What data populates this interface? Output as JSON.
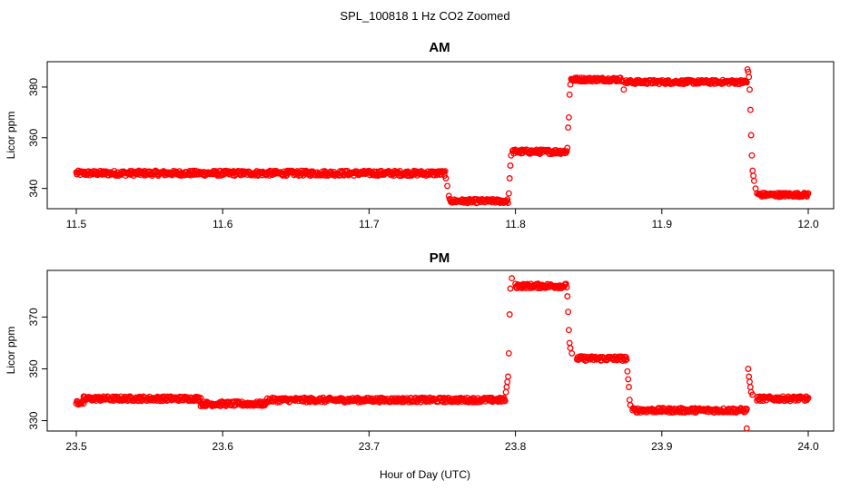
{
  "chart_data": {
    "title": "SPL_100818  1 Hz CO2 Zoomed",
    "xlabel": "Hour of Day (UTC)",
    "type": "scatter",
    "marker_color": "#ff0000",
    "panels": [
      {
        "title": "AM",
        "ylabel": "Licor ppm",
        "xlim": [
          11.5,
          12.0
        ],
        "ylim": [
          332,
          390
        ],
        "xticks": [
          11.5,
          11.6,
          11.7,
          11.8,
          11.9,
          12.0
        ],
        "xtick_labels": [
          "11.5",
          "11.6",
          "11.7",
          "11.8",
          "11.9",
          "12.0"
        ],
        "yticks": [
          340,
          360,
          380
        ],
        "ytick_labels": [
          "340",
          "360",
          "380"
        ],
        "series": [
          {
            "name": "CO2",
            "segments": [
              {
                "x_start": 11.5,
                "x_end": 11.752,
                "level": 346,
                "noise": 1.0
              },
              {
                "x_start": 11.755,
                "x_end": 11.795,
                "level": 335,
                "noise": 0.8
              },
              {
                "x_start": 11.798,
                "x_end": 11.835,
                "level": 354.5,
                "noise": 0.9
              },
              {
                "x_start": 11.838,
                "x_end": 11.873,
                "level": 383,
                "noise": 0.8
              },
              {
                "x_start": 11.875,
                "x_end": 11.958,
                "level": 382,
                "noise": 0.8
              },
              {
                "x_start": 11.966,
                "x_end": 12.0,
                "level": 337.5,
                "noise": 0.8
              }
            ],
            "transitions": [
              {
                "x": 11.7525,
                "y": 344
              },
              {
                "x": 11.7535,
                "y": 341
              },
              {
                "x": 11.7545,
                "y": 337
              },
              {
                "x": 11.7955,
                "y": 338
              },
              {
                "x": 11.796,
                "y": 344
              },
              {
                "x": 11.7965,
                "y": 349
              },
              {
                "x": 11.797,
                "y": 353
              },
              {
                "x": 11.8355,
                "y": 356
              },
              {
                "x": 11.836,
                "y": 364
              },
              {
                "x": 11.8365,
                "y": 368
              },
              {
                "x": 11.837,
                "y": 377
              },
              {
                "x": 11.8375,
                "y": 381
              },
              {
                "x": 11.874,
                "y": 379
              },
              {
                "x": 11.9585,
                "y": 387
              },
              {
                "x": 11.959,
                "y": 386
              },
              {
                "x": 11.9595,
                "y": 384
              },
              {
                "x": 11.96,
                "y": 379
              },
              {
                "x": 11.9605,
                "y": 371
              },
              {
                "x": 11.961,
                "y": 361
              },
              {
                "x": 11.9615,
                "y": 353
              },
              {
                "x": 11.962,
                "y": 347
              },
              {
                "x": 11.9625,
                "y": 345
              },
              {
                "x": 11.963,
                "y": 343
              },
              {
                "x": 11.964,
                "y": 340
              },
              {
                "x": 11.965,
                "y": 338
              }
            ]
          }
        ]
      },
      {
        "title": "PM",
        "ylabel": "Licor ppm",
        "xlim": [
          23.5,
          24.0
        ],
        "ylim": [
          326,
          388
        ],
        "xticks": [
          23.5,
          23.6,
          23.7,
          23.8,
          23.9,
          24.0
        ],
        "xtick_labels": [
          "23.5",
          "23.6",
          "23.7",
          "23.8",
          "23.9",
          "24.0"
        ],
        "yticks": [
          330,
          350,
          370
        ],
        "ytick_labels": [
          "330",
          "350",
          "370"
        ],
        "series": [
          {
            "name": "CO2",
            "segments": [
              {
                "x_start": 23.5,
                "x_end": 23.505,
                "level": 337,
                "noise": 0.9
              },
              {
                "x_start": 23.505,
                "x_end": 23.585,
                "level": 338.5,
                "noise": 0.9
              },
              {
                "x_start": 23.585,
                "x_end": 23.63,
                "level": 336.5,
                "noise": 0.9
              },
              {
                "x_start": 23.63,
                "x_end": 23.793,
                "level": 338,
                "noise": 0.9
              },
              {
                "x_start": 23.8,
                "x_end": 23.835,
                "level": 382,
                "noise": 0.9
              },
              {
                "x_start": 23.842,
                "x_end": 23.876,
                "level": 354,
                "noise": 0.9
              },
              {
                "x_start": 23.88,
                "x_end": 23.958,
                "level": 334,
                "noise": 0.9
              },
              {
                "x_start": 23.965,
                "x_end": 24.0,
                "level": 338.5,
                "noise": 0.9
              }
            ],
            "transitions": [
              {
                "x": 23.7935,
                "y": 341
              },
              {
                "x": 23.794,
                "y": 343
              },
              {
                "x": 23.7945,
                "y": 345
              },
              {
                "x": 23.795,
                "y": 347
              },
              {
                "x": 23.7955,
                "y": 356
              },
              {
                "x": 23.796,
                "y": 371
              },
              {
                "x": 23.7965,
                "y": 381
              },
              {
                "x": 23.7975,
                "y": 385
              },
              {
                "x": 23.8355,
                "y": 378
              },
              {
                "x": 23.836,
                "y": 372
              },
              {
                "x": 23.8365,
                "y": 365
              },
              {
                "x": 23.837,
                "y": 360
              },
              {
                "x": 23.8375,
                "y": 358
              },
              {
                "x": 23.8385,
                "y": 356
              },
              {
                "x": 23.8765,
                "y": 349
              },
              {
                "x": 23.877,
                "y": 346
              },
              {
                "x": 23.8775,
                "y": 343
              },
              {
                "x": 23.878,
                "y": 338
              },
              {
                "x": 23.8785,
                "y": 336
              },
              {
                "x": 23.958,
                "y": 327
              },
              {
                "x": 23.959,
                "y": 350
              },
              {
                "x": 23.9595,
                "y": 347
              },
              {
                "x": 23.96,
                "y": 345
              },
              {
                "x": 23.9605,
                "y": 343
              },
              {
                "x": 23.961,
                "y": 341
              },
              {
                "x": 23.962,
                "y": 340
              }
            ]
          }
        ]
      }
    ]
  }
}
